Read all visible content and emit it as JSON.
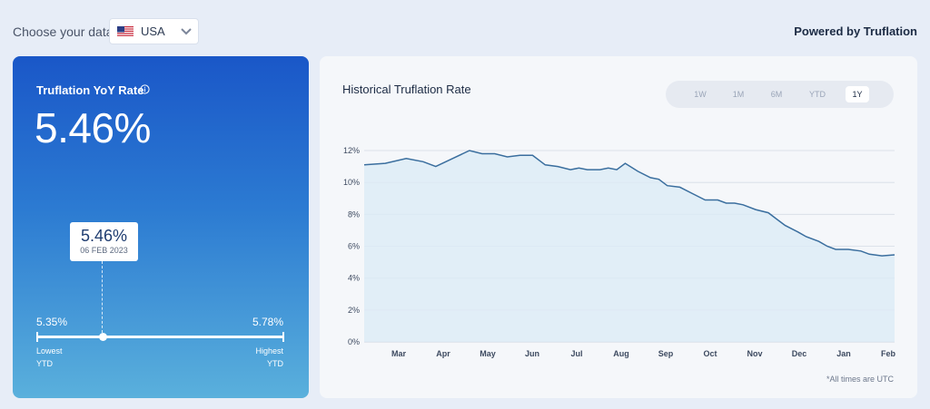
{
  "header": {
    "choose_label": "Choose your data:",
    "country": "USA",
    "flag_icon": "us-flag-icon",
    "powered_by": "Powered by Truflation"
  },
  "rate_card": {
    "title": "Truflation YoY Rate",
    "value": "5.46%",
    "tooltip_value": "5.46%",
    "tooltip_date": "06 FEB 2023",
    "low_value": "5.35%",
    "high_value": "5.78%",
    "low_label_1": "Lowest",
    "low_label_2": "YTD",
    "high_label_1": "Highest",
    "high_label_2": "YTD",
    "colors": {
      "gradient_top": "#1a57c8",
      "gradient_bottom": "#5ab0dc"
    }
  },
  "history": {
    "title": "Historical Truflation Rate",
    "ranges": [
      "1W",
      "1M",
      "6M",
      "YTD",
      "1Y"
    ],
    "active_range": "1Y",
    "note": "*All times are UTC"
  },
  "chart_data": {
    "type": "area",
    "ylim": [
      0,
      12
    ],
    "yticks": [
      "12%",
      "10%",
      "8%",
      "6%",
      "4%",
      "2%",
      "0%"
    ],
    "ytick_values": [
      12,
      10,
      8,
      6,
      4,
      2,
      0
    ],
    "xlabels": [
      "Mar",
      "Apr",
      "May",
      "Jun",
      "Jul",
      "Aug",
      "Sep",
      "Oct",
      "Nov",
      "Dec",
      "Jan",
      "Feb"
    ],
    "x": [
      0,
      0.5,
      1,
      1.4,
      1.7,
      2.1,
      2.5,
      2.8,
      3.1,
      3.4,
      3.7,
      4.0,
      4.3,
      4.6,
      4.9,
      5.1,
      5.3,
      5.6,
      5.8,
      6.0,
      6.2,
      6.5,
      6.8,
      7.0,
      7.2,
      7.5,
      7.8,
      8.1,
      8.4,
      8.6,
      8.8,
      9.0,
      9.3,
      9.6,
      9.8,
      10.0,
      10.3,
      10.5,
      10.8,
      11.0,
      11.2,
      11.5,
      11.8,
      12.0,
      12.3,
      12.6
    ],
    "values": [
      11.1,
      11.2,
      11.5,
      11.3,
      11.0,
      11.5,
      12.0,
      11.8,
      11.8,
      11.6,
      11.7,
      11.7,
      11.1,
      11.0,
      10.8,
      10.9,
      10.8,
      10.8,
      10.9,
      10.8,
      11.2,
      10.7,
      10.3,
      10.2,
      9.8,
      9.7,
      9.3,
      8.9,
      8.9,
      8.7,
      8.7,
      8.6,
      8.3,
      8.1,
      7.7,
      7.3,
      6.9,
      6.6,
      6.3,
      6.0,
      5.8,
      5.8,
      5.7,
      5.5,
      5.4,
      5.46
    ],
    "colors": {
      "line": "#3a6e9e",
      "fill": "#dcebf6",
      "grid": "#d5dbe5"
    }
  }
}
